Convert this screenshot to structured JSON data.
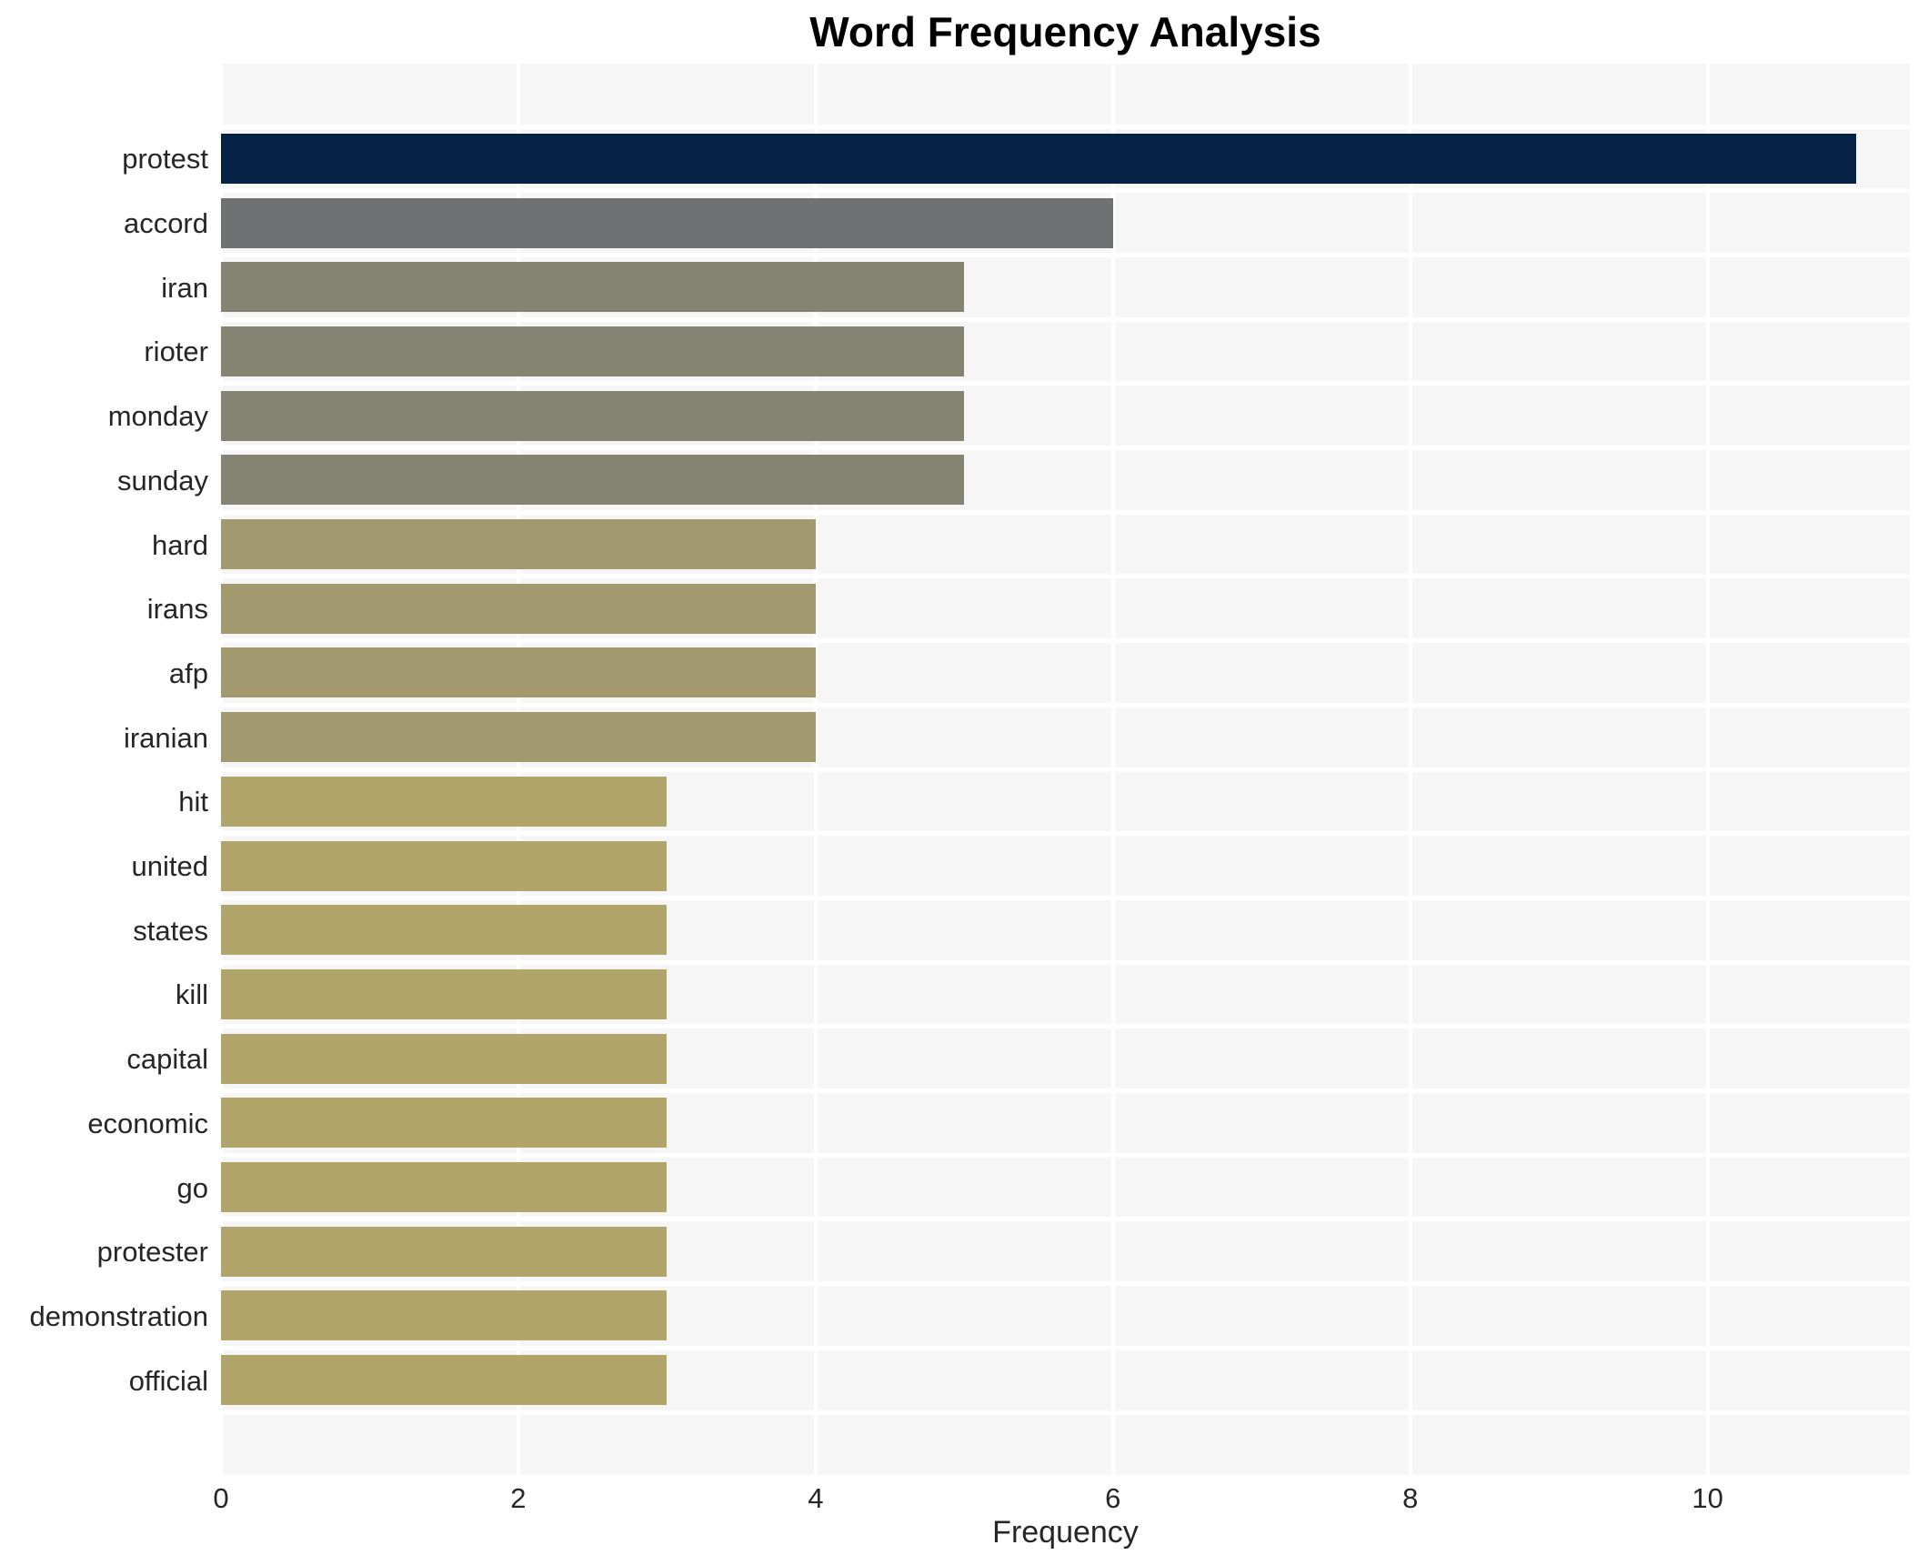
{
  "chart_data": {
    "type": "bar",
    "orientation": "horizontal",
    "title": "Word Frequency Analysis",
    "xlabel": "Frequency",
    "ylabel": "",
    "categories": [
      "protest",
      "accord",
      "iran",
      "rioter",
      "monday",
      "sunday",
      "hard",
      "irans",
      "afp",
      "iranian",
      "hit",
      "united",
      "states",
      "kill",
      "capital",
      "economic",
      "go",
      "protester",
      "demonstration",
      "official"
    ],
    "values": [
      11,
      6,
      5,
      5,
      5,
      5,
      4,
      4,
      4,
      4,
      3,
      3,
      3,
      3,
      3,
      3,
      3,
      3,
      3,
      3
    ],
    "bar_colors": [
      "#062345",
      "#6f7173",
      "#858371",
      "#858371",
      "#858371",
      "#858371",
      "#a2996f",
      "#a2996f",
      "#a2996f",
      "#a2996f",
      "#b2a569",
      "#b2a569",
      "#b2a569",
      "#b2a569",
      "#b2a569",
      "#b2a569",
      "#b2a569",
      "#b2a569",
      "#b2a569",
      "#b2a569"
    ],
    "x_ticks": [
      0,
      2,
      4,
      6,
      8,
      10
    ],
    "xlim": [
      0,
      11.36
    ],
    "grid": true,
    "legend_position": "none",
    "colors": {
      "plot_background": "#f6f6f7",
      "gridline": "#ffffff",
      "page_background": "#ffffff",
      "title_text": "#000000",
      "tick_text": "#262626"
    }
  }
}
